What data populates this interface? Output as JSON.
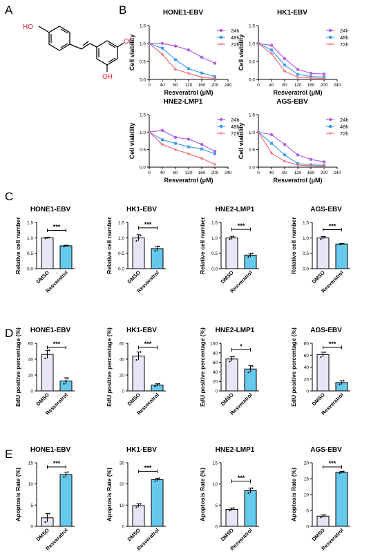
{
  "panel_letters": [
    "A",
    "B",
    "C",
    "D",
    "E"
  ],
  "structure": {
    "atoms": [
      "HO",
      "OH",
      "OH"
    ],
    "atom_color": "#e0202a"
  },
  "colors": {
    "h24": "#b05fe0",
    "h48": "#3d9df0",
    "h72": "#f26d78",
    "dmso_fill": "#e7e6f7",
    "resv_fill": "#66c8ea",
    "axis": "#000000"
  },
  "chart_data": [
    {
      "type": "line",
      "title": "HONE1-EBV",
      "xlabel": "Resveratrol (μM)",
      "ylabel": "Cell viability",
      "xlim": [
        0,
        240
      ],
      "ylim": [
        0,
        1.5
      ],
      "xticks": [
        "0",
        "40",
        "80",
        "120",
        "160",
        "200",
        "240"
      ],
      "yticks": [
        "0.0",
        "0.5",
        "1.0",
        "1.5"
      ],
      "x": [
        0,
        40,
        80,
        120,
        160,
        200
      ],
      "legend_position": "top-right",
      "series": [
        {
          "name": "24h",
          "values": [
            1.0,
            1.0,
            0.93,
            0.82,
            0.62,
            0.45
          ]
        },
        {
          "name": "48h",
          "values": [
            1.0,
            0.87,
            0.55,
            0.3,
            0.18,
            0.08
          ]
        },
        {
          "name": "72h",
          "values": [
            1.0,
            0.7,
            0.28,
            0.17,
            0.06,
            0.03
          ]
        }
      ]
    },
    {
      "type": "line",
      "title": "HK1-EBV",
      "xlabel": "Resveratrol (μM)",
      "ylabel": "Cell viability",
      "xlim": [
        0,
        240
      ],
      "ylim": [
        0,
        1.5
      ],
      "xticks": [
        "0",
        "40",
        "80",
        "120",
        "160",
        "200",
        "240"
      ],
      "yticks": [
        "0.0",
        "0.5",
        "1.0",
        "1.5"
      ],
      "x": [
        0,
        40,
        80,
        120,
        160,
        200
      ],
      "legend_position": "top-right",
      "series": [
        {
          "name": "24h",
          "values": [
            1.0,
            0.95,
            0.58,
            0.28,
            0.17,
            0.15
          ]
        },
        {
          "name": "48h",
          "values": [
            1.0,
            0.82,
            0.4,
            0.14,
            0.08,
            0.07
          ]
        },
        {
          "name": "72h",
          "values": [
            1.0,
            0.72,
            0.23,
            0.06,
            0.04,
            0.03
          ]
        }
      ]
    },
    {
      "type": "line",
      "title": "HNE2-LMP1",
      "xlabel": "Resveratrol (μM)",
      "ylabel": "Cell viability",
      "xlim": [
        0,
        240
      ],
      "ylim": [
        0,
        1.5
      ],
      "xticks": [
        "0",
        "40",
        "80",
        "120",
        "160",
        "200",
        "240"
      ],
      "yticks": [
        "0.0",
        "0.5",
        "1.0",
        "1.5"
      ],
      "x": [
        0,
        40,
        80,
        120,
        160,
        200
      ],
      "legend_position": "top-right",
      "series": [
        {
          "name": "24h",
          "values": [
            1.0,
            1.05,
            0.85,
            0.8,
            0.65,
            0.45
          ]
        },
        {
          "name": "48h",
          "values": [
            1.0,
            0.78,
            0.68,
            0.58,
            0.52,
            0.38
          ]
        },
        {
          "name": "72h",
          "values": [
            1.0,
            0.65,
            0.5,
            0.38,
            0.25,
            0.08
          ]
        }
      ]
    },
    {
      "type": "line",
      "title": "AGS-EBV",
      "xlabel": "Resveratrol (μM)",
      "ylabel": "Cell viability",
      "xlim": [
        0,
        240
      ],
      "ylim": [
        0,
        1.5
      ],
      "xticks": [
        "0",
        "40",
        "80",
        "120",
        "160",
        "200",
        "240"
      ],
      "yticks": [
        "0.0",
        "0.5",
        "1.0",
        "1.5"
      ],
      "x": [
        0,
        40,
        80,
        120,
        160,
        200
      ],
      "legend_position": "top-right",
      "series": [
        {
          "name": "24h",
          "values": [
            1.0,
            0.93,
            0.65,
            0.35,
            0.22,
            0.15
          ]
        },
        {
          "name": "48h",
          "values": [
            1.0,
            0.68,
            0.35,
            0.1,
            0.07,
            0.05
          ]
        },
        {
          "name": "72h",
          "values": [
            1.0,
            0.4,
            0.17,
            0.06,
            0.04,
            0.03
          ]
        }
      ]
    },
    {
      "type": "bar",
      "title": "HONE1-EBV",
      "ylabel": "Relative cell number",
      "categories": [
        "DMSO",
        "Resveratrol"
      ],
      "values": [
        1.0,
        0.74
      ],
      "errors": [
        0.02,
        0.02
      ],
      "points": [
        [
          0.98,
          1.0,
          1.01
        ],
        [
          0.72,
          0.74,
          0.75
        ]
      ],
      "ylim": [
        0,
        1.5
      ],
      "yticks": [
        "0.0",
        "0.5",
        "1.0",
        "1.5"
      ],
      "significance": "***"
    },
    {
      "type": "bar",
      "title": "HK1-EBV",
      "ylabel": "Relative cell number",
      "categories": [
        "DMSO",
        "Resveratrol"
      ],
      "values": [
        1.0,
        0.65
      ],
      "errors": [
        0.1,
        0.08
      ],
      "points": [
        [
          0.9,
          1.0,
          1.08
        ],
        [
          0.58,
          0.65,
          0.72
        ]
      ],
      "ylim": [
        0,
        1.5
      ],
      "yticks": [
        "0.0",
        "0.5",
        "1.0",
        "1.5"
      ],
      "significance": "***"
    },
    {
      "type": "bar",
      "title": "HNE2-LMP1",
      "ylabel": "Relative cell number",
      "categories": [
        "DMSO",
        "Resveratrol"
      ],
      "values": [
        1.0,
        0.44
      ],
      "errors": [
        0.05,
        0.06
      ],
      "points": [
        [
          0.96,
          1.0,
          1.04
        ],
        [
          0.38,
          0.44,
          0.5
        ]
      ],
      "ylim": [
        0,
        1.5
      ],
      "yticks": [
        "0.0",
        "0.5",
        "1.0",
        "1.5"
      ],
      "significance": "***"
    },
    {
      "type": "bar",
      "title": "AGS-EBV",
      "ylabel": "Relative cell number",
      "categories": [
        "DMSO",
        "Resveratrol"
      ],
      "values": [
        1.0,
        0.8
      ],
      "errors": [
        0.04,
        0.02
      ],
      "points": [
        [
          0.96,
          1.0,
          1.03
        ],
        [
          0.79,
          0.8,
          0.81
        ]
      ],
      "ylim": [
        0,
        1.5
      ],
      "yticks": [
        "0.0",
        "0.5",
        "1.0",
        "1.5"
      ],
      "significance": "***"
    },
    {
      "type": "bar",
      "title": "HONE1-EBV",
      "ylabel": "EdU positive percentage (%)",
      "categories": [
        "DMSO",
        "Resveratrol"
      ],
      "values": [
        46,
        12.5
      ],
      "errors": [
        5,
        4
      ],
      "points": [
        [
          41,
          46,
          51
        ],
        [
          9,
          12,
          16
        ]
      ],
      "ylim": [
        0,
        60
      ],
      "yticks": [
        "0",
        "20",
        "40",
        "60"
      ],
      "significance": "***"
    },
    {
      "type": "bar",
      "title": "HK1-EBV",
      "ylabel": "EdU positive percentage (%)",
      "categories": [
        "DMSO",
        "Resveratrol"
      ],
      "values": [
        44,
        7.5
      ],
      "errors": [
        5,
        1.5
      ],
      "points": [
        [
          39,
          44,
          49
        ],
        [
          6,
          7.5,
          9
        ]
      ],
      "ylim": [
        0,
        60
      ],
      "yticks": [
        "0",
        "20",
        "40",
        "60"
      ],
      "significance": "***"
    },
    {
      "type": "bar",
      "title": "HNE2-LMP1",
      "ylabel": "EdU positive percentage (%)",
      "categories": [
        "DMSO",
        "Resveratrol"
      ],
      "values": [
        67,
        46
      ],
      "errors": [
        5,
        7
      ],
      "points": [
        [
          62,
          67,
          72
        ],
        [
          39,
          46,
          52
        ]
      ],
      "ylim": [
        0,
        100
      ],
      "yticks": [
        "0",
        "20",
        "40",
        "60",
        "80",
        "100"
      ],
      "significance": "*"
    },
    {
      "type": "bar",
      "title": "AGS-EBV",
      "ylabel": "EdU positive percentage (%)",
      "categories": [
        "DMSO",
        "Resveratrol"
      ],
      "values": [
        61,
        14
      ],
      "errors": [
        4,
        3
      ],
      "points": [
        [
          57,
          61,
          65
        ],
        [
          11,
          14,
          17
        ]
      ],
      "ylim": [
        0,
        80
      ],
      "yticks": [
        "0",
        "20",
        "40",
        "60",
        "80"
      ],
      "significance": "***"
    },
    {
      "type": "bar",
      "title": "HONE1-EBV",
      "ylabel": "Apoptosis Rate (%)",
      "categories": [
        "DMSO",
        "Resveratrol"
      ],
      "values": [
        2,
        12.2
      ],
      "errors": [
        1,
        0.6
      ],
      "points": [
        [
          1,
          2,
          3
        ],
        [
          11.6,
          12.2,
          12.8
        ]
      ],
      "ylim": [
        0,
        15
      ],
      "yticks": [
        "0",
        "5",
        "10",
        "15"
      ],
      "significance": "***"
    },
    {
      "type": "bar",
      "title": "HK1-EBV",
      "ylabel": "Apoptosis Rate (%)",
      "categories": [
        "DMSO",
        "Resveratrol"
      ],
      "values": [
        9.8,
        22
      ],
      "errors": [
        0.8,
        0.7
      ],
      "points": [
        [
          9,
          9.8,
          10.6
        ],
        [
          21.3,
          22,
          22.7
        ]
      ],
      "ylim": [
        0,
        30
      ],
      "yticks": [
        "0",
        "10",
        "20",
        "30"
      ],
      "significance": "***"
    },
    {
      "type": "bar",
      "title": "HNE2-LMP1",
      "ylabel": "Apoptosis Rate (%)",
      "categories": [
        "DMSO",
        "Resveratrol"
      ],
      "values": [
        4,
        8.4
      ],
      "errors": [
        0.3,
        0.6
      ],
      "points": [
        [
          3.7,
          4,
          4.3
        ],
        [
          7.8,
          8.4,
          9
        ]
      ],
      "ylim": [
        0,
        15
      ],
      "yticks": [
        "0",
        "5",
        "10",
        "15"
      ],
      "significance": "***"
    },
    {
      "type": "bar",
      "title": "AGS-EBV",
      "ylabel": "Apoptosis Rate (%)",
      "categories": [
        "DMSO",
        "Resveratrol"
      ],
      "values": [
        3.2,
        17
      ],
      "errors": [
        0.4,
        0.3
      ],
      "points": [
        [
          2.8,
          3.2,
          3.6
        ],
        [
          16.7,
          17,
          17.3
        ]
      ],
      "ylim": [
        0,
        20
      ],
      "yticks": [
        "0",
        "5",
        "10",
        "15",
        "20"
      ],
      "significance": "***"
    }
  ]
}
